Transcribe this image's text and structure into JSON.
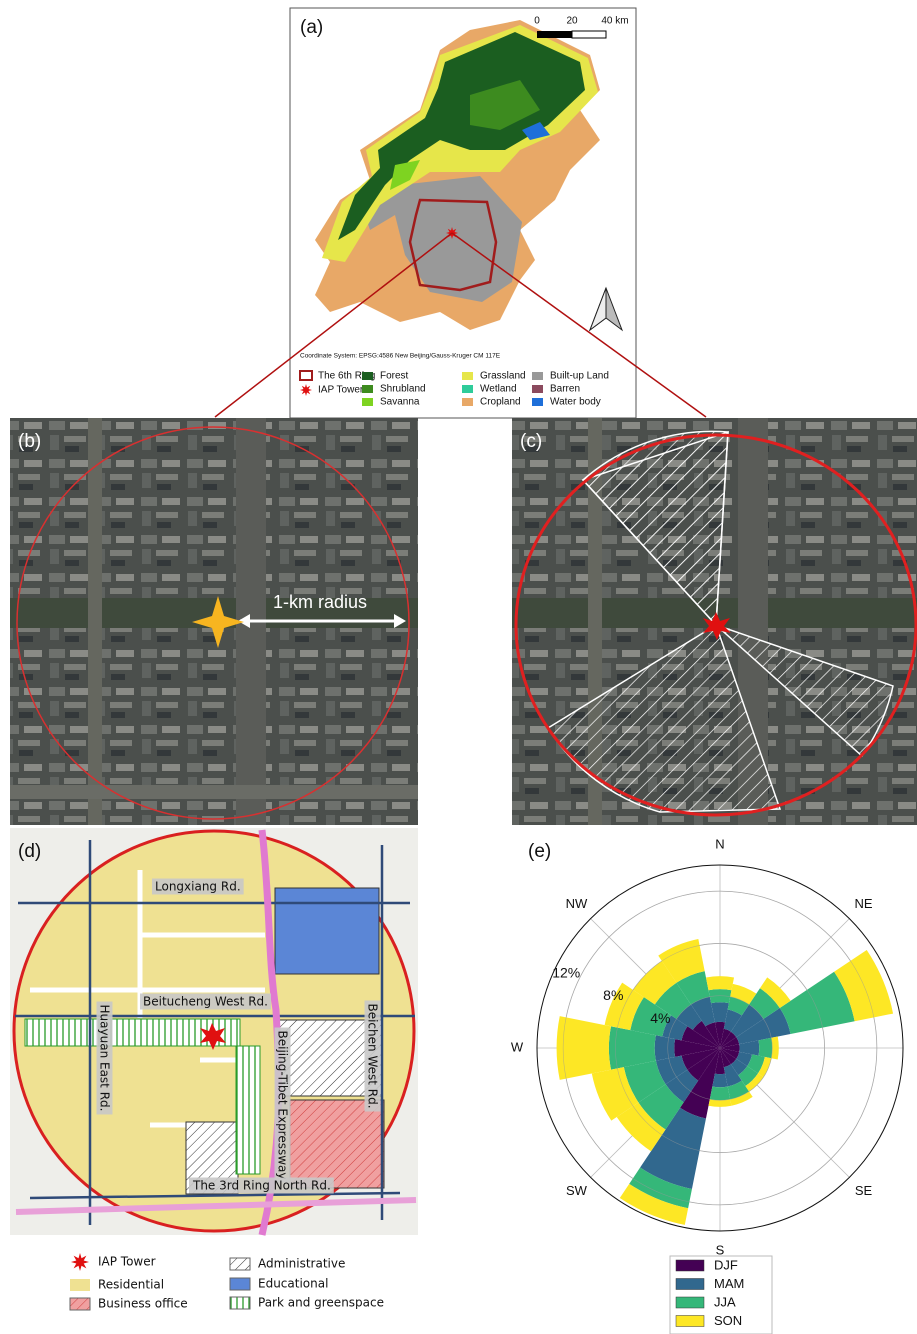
{
  "panel_a": {
    "label": "(a)",
    "scale_bar": [
      "0",
      "20",
      "40 km"
    ],
    "coordinate_system": "Coordinate System: EPSG:4586 New Beijing/Gauss-Kruger CM 117E",
    "legend": [
      {
        "name": "The 6th Ring",
        "color": "#a01c1c"
      },
      {
        "name": "IAP Tower",
        "color": "#e01010"
      },
      {
        "name": "Forest",
        "color": "#1b5e20"
      },
      {
        "name": "Shrubland",
        "color": "#3d8b1f"
      },
      {
        "name": "Savanna",
        "color": "#7ed321"
      },
      {
        "name": "Grassland",
        "color": "#e6e64a"
      },
      {
        "name": "Wetland",
        "color": "#2ecc9a"
      },
      {
        "name": "Cropland",
        "color": "#e8a867"
      },
      {
        "name": "Built-up Land",
        "color": "#999999"
      },
      {
        "name": "Barren",
        "color": "#8b4a5e"
      },
      {
        "name": "Water body",
        "color": "#1e6fd9"
      }
    ]
  },
  "panel_b": {
    "label": "(b)",
    "annotation": "1-km radius"
  },
  "panel_c": {
    "label": "(c)"
  },
  "panel_d": {
    "label": "(d)",
    "roads": [
      "Longxiang Rd.",
      "Beitucheng West Rd.",
      "Huayuan East Rd.",
      "Beijing-Tibet Expressway",
      "Beichen West Rd.",
      "The 3rd Ring North Rd."
    ],
    "legend": [
      "IAP Tower",
      "Residential",
      "Business office",
      "Administrative",
      "Educational",
      "Park and greenspace"
    ]
  },
  "chart_data": {
    "type": "windrose",
    "title": "(e)",
    "categories": [
      "N",
      null,
      "NE",
      null,
      null,
      null,
      "SE",
      null,
      "S",
      null,
      "SW",
      null,
      "W",
      null,
      "NW",
      null
    ],
    "series": [
      {
        "name": "DJF",
        "color": "#440154",
        "values": [
          2,
          1.5,
          1.5,
          1.5,
          1.5,
          1.5,
          1.5,
          1.5,
          2,
          5.5,
          3,
          3,
          3.5,
          3,
          2.5,
          2
        ]
      },
      {
        "name": "MAM",
        "color": "#31688e",
        "values": [
          1.5,
          1.5,
          2.5,
          4,
          1.5,
          1,
          1,
          1.5,
          1,
          5.5,
          2,
          2,
          1.5,
          1.5,
          1.5,
          2
        ]
      },
      {
        "name": "JJA",
        "color": "#35b779",
        "values": [
          1,
          1,
          1.5,
          5,
          1,
          1,
          1,
          1,
          1,
          1.5,
          2.5,
          2.5,
          3.5,
          2.5,
          2,
          2
        ]
      },
      {
        "name": "SON",
        "color": "#fde725",
        "values": [
          1,
          1,
          1,
          3,
          0.5,
          0.5,
          0.5,
          0.5,
          0.5,
          1.3,
          2,
          2.5,
          4,
          2,
          2,
          2.5
        ]
      }
    ],
    "ylim": [
      0,
      14
    ],
    "yticks": [
      {
        "value": 4,
        "label": "4%"
      },
      {
        "value": 8,
        "label": "8%"
      },
      {
        "value": 12,
        "label": "12%"
      }
    ],
    "grid": true
  }
}
